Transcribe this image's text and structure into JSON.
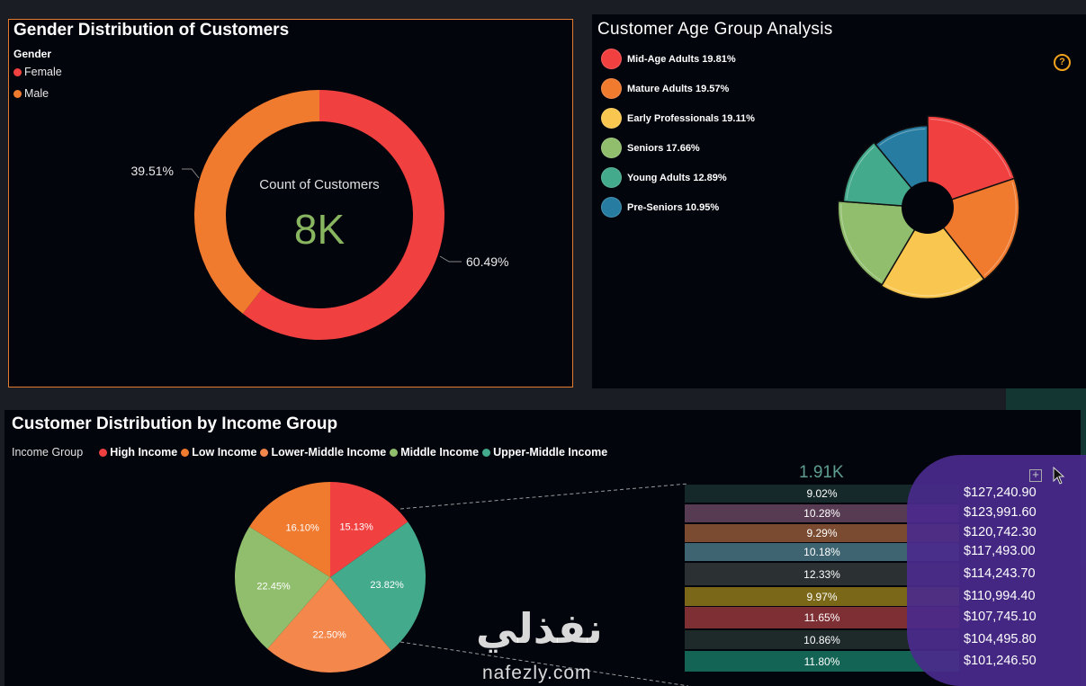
{
  "gender_panel": {
    "title": "Gender Distribution of Customers",
    "legend_title": "Gender",
    "legend": [
      {
        "label": "Female",
        "color": "#f04040"
      },
      {
        "label": "Male",
        "color": "#f07a2e"
      }
    ],
    "center_label": "Count of Customers",
    "center_value": "8K",
    "label_male": "39.51%",
    "label_female": "60.49%"
  },
  "age_panel": {
    "title": "Customer Age Group Analysis",
    "help_icon": "?",
    "legend": [
      {
        "label": "Mid-Age Adults 19.81%",
        "color": "#f04040"
      },
      {
        "label": "Mature Adults 19.57%",
        "color": "#f07a2e"
      },
      {
        "label": "Early Professionals 19.11%",
        "color": "#f9c74f"
      },
      {
        "label": "Seniors 17.66%",
        "color": "#90be6d"
      },
      {
        "label": "Young Adults 12.89%",
        "color": "#43aa8b"
      },
      {
        "label": "Pre-Seniors 10.95%",
        "color": "#277da1"
      }
    ]
  },
  "income_panel": {
    "title": "Customer Distribution by Income Group",
    "legend_title": "Income Group",
    "legend": [
      {
        "label": "High Income",
        "color": "#f04040"
      },
      {
        "label": "Low Income",
        "color": "#f07a2e"
      },
      {
        "label": "Lower-Middle Income",
        "color": "#f4874b"
      },
      {
        "label": "Middle Income",
        "color": "#90be6d"
      },
      {
        "label": "Upper-Middle Income",
        "color": "#43aa8b"
      }
    ],
    "kpi_value": "1.91K",
    "table_rows": [
      {
        "pct": "9.02%",
        "value": "$127,240.90",
        "color": "#15292a"
      },
      {
        "pct": "10.28%",
        "value": "$123,991.60",
        "color": "#573b52"
      },
      {
        "pct": "9.29%",
        "value": "$120,742.30",
        "color": "#7a4b30"
      },
      {
        "pct": "10.18%",
        "value": "$117,493.00",
        "color": "#3d6470"
      },
      {
        "pct": "12.33%",
        "value": "$114,243.70",
        "color": "#2b3133"
      },
      {
        "pct": "9.97%",
        "value": "$110,994.40",
        "color": "#7a6718"
      },
      {
        "pct": "11.65%",
        "value": "$107,745.10",
        "color": "#7e2f34"
      },
      {
        "pct": "10.86%",
        "value": "$104,495.80",
        "color": "#1e2a2a"
      },
      {
        "pct": "11.80%",
        "value": "$101,246.50",
        "color": "#136454"
      }
    ]
  },
  "chart_data": [
    {
      "type": "pie",
      "title": "Gender Distribution of Customers",
      "donut": true,
      "categories": [
        "Female",
        "Male"
      ],
      "values": [
        60.49,
        39.51
      ],
      "center_label": "Count of Customers",
      "center_value": "8K",
      "legend": "top-left"
    },
    {
      "type": "pie",
      "title": "Customer Age Group Analysis",
      "donut": true,
      "categories": [
        "Mid-Age Adults",
        "Mature Adults",
        "Early Professionals",
        "Seniors",
        "Young Adults",
        "Pre-Seniors"
      ],
      "values": [
        19.81,
        19.57,
        19.11,
        17.66,
        12.89,
        10.95
      ],
      "legend": "top-left"
    },
    {
      "type": "pie",
      "title": "Customer Distribution by Income Group",
      "categories": [
        "High Income",
        "Upper-Middle Income",
        "Lower-Middle Income",
        "Middle Income",
        "Low Income"
      ],
      "values": [
        15.13,
        23.82,
        22.5,
        22.45,
        16.1
      ],
      "labels": [
        "15.13%",
        "23.82%",
        "22.50%",
        "22.45%",
        "16.10%"
      ],
      "legend": "top-left"
    }
  ],
  "watermark": {
    "arabic": "نفذلي",
    "latin": "nafezly.com"
  }
}
